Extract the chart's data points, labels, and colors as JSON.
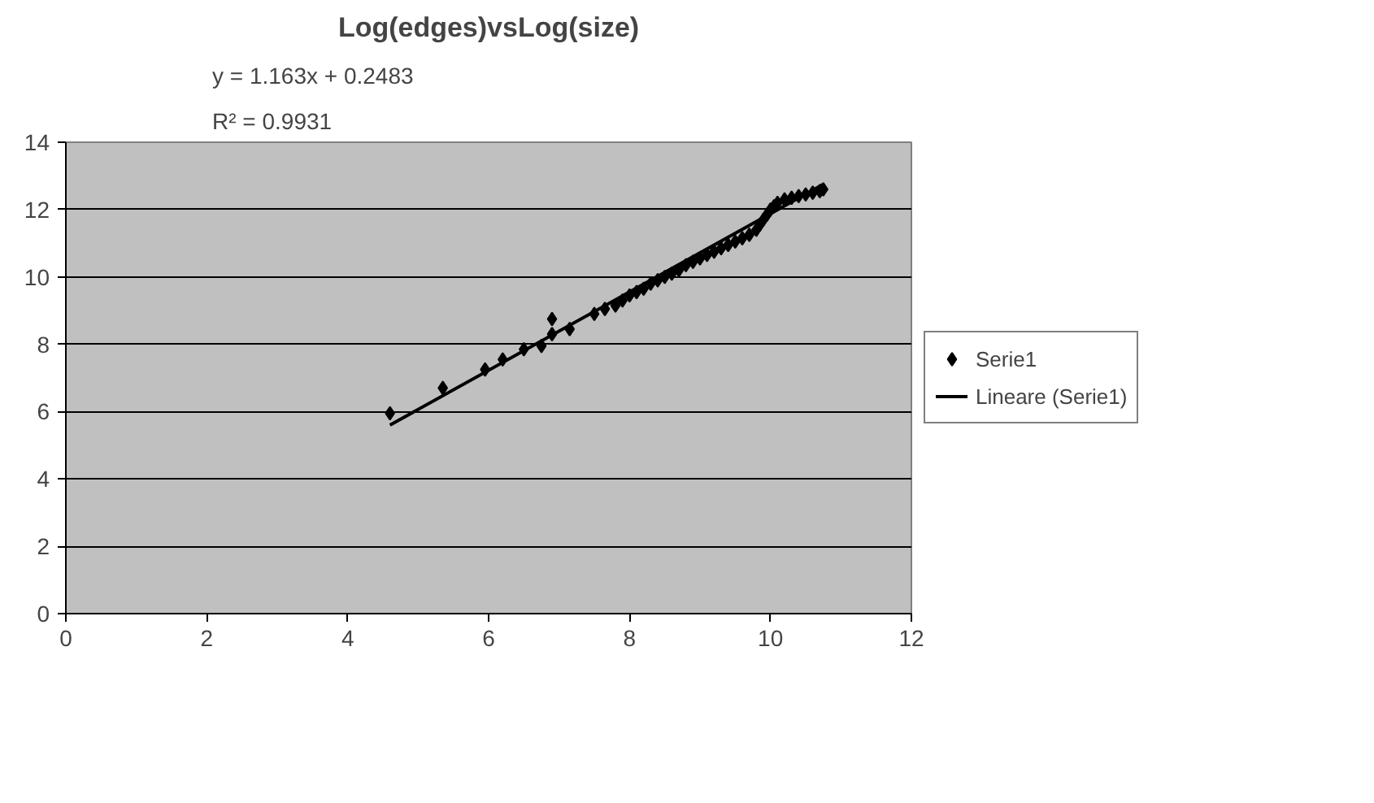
{
  "chart_data": {
    "type": "scatter",
    "title": "Log(edges)vsLog(size)",
    "annotations": [
      "y = 1.163x + 0.2483",
      "R² = 0.9931"
    ],
    "series": [
      {
        "name": "Serie1",
        "color": "#000000",
        "marker": "diamond",
        "x": [
          4.6,
          5.35,
          5.95,
          6.2,
          6.5,
          6.75,
          6.9,
          6.9,
          7.15,
          7.5,
          7.65,
          7.8,
          7.9,
          8.0,
          8.1,
          8.2,
          8.3,
          8.4,
          8.5,
          8.6,
          8.7,
          8.8,
          8.9,
          9.0,
          9.1,
          9.2,
          9.3,
          9.4,
          9.5,
          9.6,
          9.7,
          9.8,
          9.85,
          9.9,
          9.95,
          10.0,
          10.05,
          10.1,
          10.2,
          10.3,
          10.4,
          10.5,
          10.6,
          10.7,
          10.75
        ],
        "values": [
          5.95,
          6.7,
          7.25,
          7.55,
          7.85,
          7.95,
          8.75,
          8.3,
          8.45,
          8.9,
          9.05,
          9.15,
          9.3,
          9.45,
          9.55,
          9.65,
          9.8,
          9.9,
          10.0,
          10.1,
          10.2,
          10.35,
          10.45,
          10.55,
          10.65,
          10.75,
          10.85,
          10.95,
          11.05,
          11.15,
          11.25,
          11.4,
          11.55,
          11.7,
          11.85,
          12.0,
          12.1,
          12.2,
          12.3,
          12.35,
          12.4,
          12.45,
          12.5,
          12.55,
          12.6
        ]
      },
      {
        "name": "Lineare (Serie1)",
        "type": "line",
        "color": "#000000",
        "line_style": "solid",
        "x": [
          4.6,
          10.75
        ],
        "values": [
          5.6,
          12.75
        ]
      }
    ],
    "xlim": [
      0,
      12
    ],
    "xticks": [
      0,
      2,
      4,
      6,
      8,
      10,
      12
    ],
    "ylim": [
      0,
      14
    ],
    "yticks": [
      0,
      2,
      4,
      6,
      8,
      10,
      12,
      14
    ],
    "grid": "y",
    "legend": "right"
  }
}
